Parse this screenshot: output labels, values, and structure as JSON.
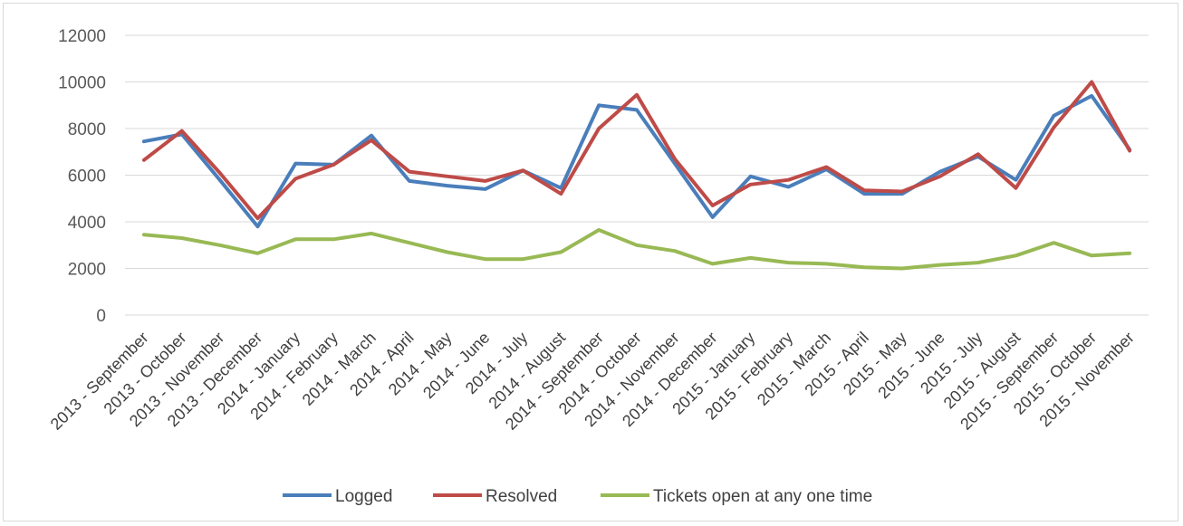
{
  "chart_data": {
    "type": "line",
    "title": "",
    "xlabel": "",
    "ylabel": "",
    "ylim": [
      0,
      12000
    ],
    "yticks": [
      0,
      2000,
      4000,
      6000,
      8000,
      10000,
      12000
    ],
    "grid": true,
    "legend_position": "bottom",
    "categories": [
      "2013 - September",
      "2013 - October",
      "2013 - November",
      "2013 - December",
      "2014 - January",
      "2014 - February",
      "2014 - March",
      "2014 - April",
      "2014 - May",
      "2014 - June",
      "2014 - July",
      "2014 - August",
      "2014 - September",
      "2014 - October",
      "2014 - November",
      "2014 - December",
      "2015 - January",
      "2015 - February",
      "2015 - March",
      "2015 - April",
      "2015 - May",
      "2015 - June",
      "2015 - July",
      "2015 - August",
      "2015 - September",
      "2015 - October",
      "2015 - November"
    ],
    "series": [
      {
        "name": "Logged",
        "color": "#4a7ebb",
        "values": [
          7450,
          7750,
          5800,
          3800,
          6500,
          6450,
          7700,
          5750,
          5550,
          5400,
          6200,
          5450,
          9000,
          8800,
          6500,
          4200,
          5950,
          5500,
          6250,
          5200,
          5200,
          6150,
          6800,
          5800,
          8550,
          9400,
          7100
        ]
      },
      {
        "name": "Resolved",
        "color": "#be4b48",
        "values": [
          6650,
          7900,
          6100,
          4150,
          5850,
          6450,
          7500,
          6150,
          5950,
          5750,
          6200,
          5200,
          8000,
          9450,
          6700,
          4700,
          5600,
          5800,
          6350,
          5350,
          5300,
          5950,
          6900,
          5450,
          8050,
          10000,
          7050
        ]
      },
      {
        "name": "Tickets open at any one time",
        "color": "#98b954",
        "values": [
          3450,
          3300,
          3000,
          2650,
          3250,
          3250,
          3500,
          3100,
          2700,
          2400,
          2400,
          2700,
          3650,
          3000,
          2750,
          2200,
          2450,
          2250,
          2200,
          2050,
          2000,
          2150,
          2250,
          2550,
          3100,
          2550,
          2650
        ]
      }
    ]
  }
}
